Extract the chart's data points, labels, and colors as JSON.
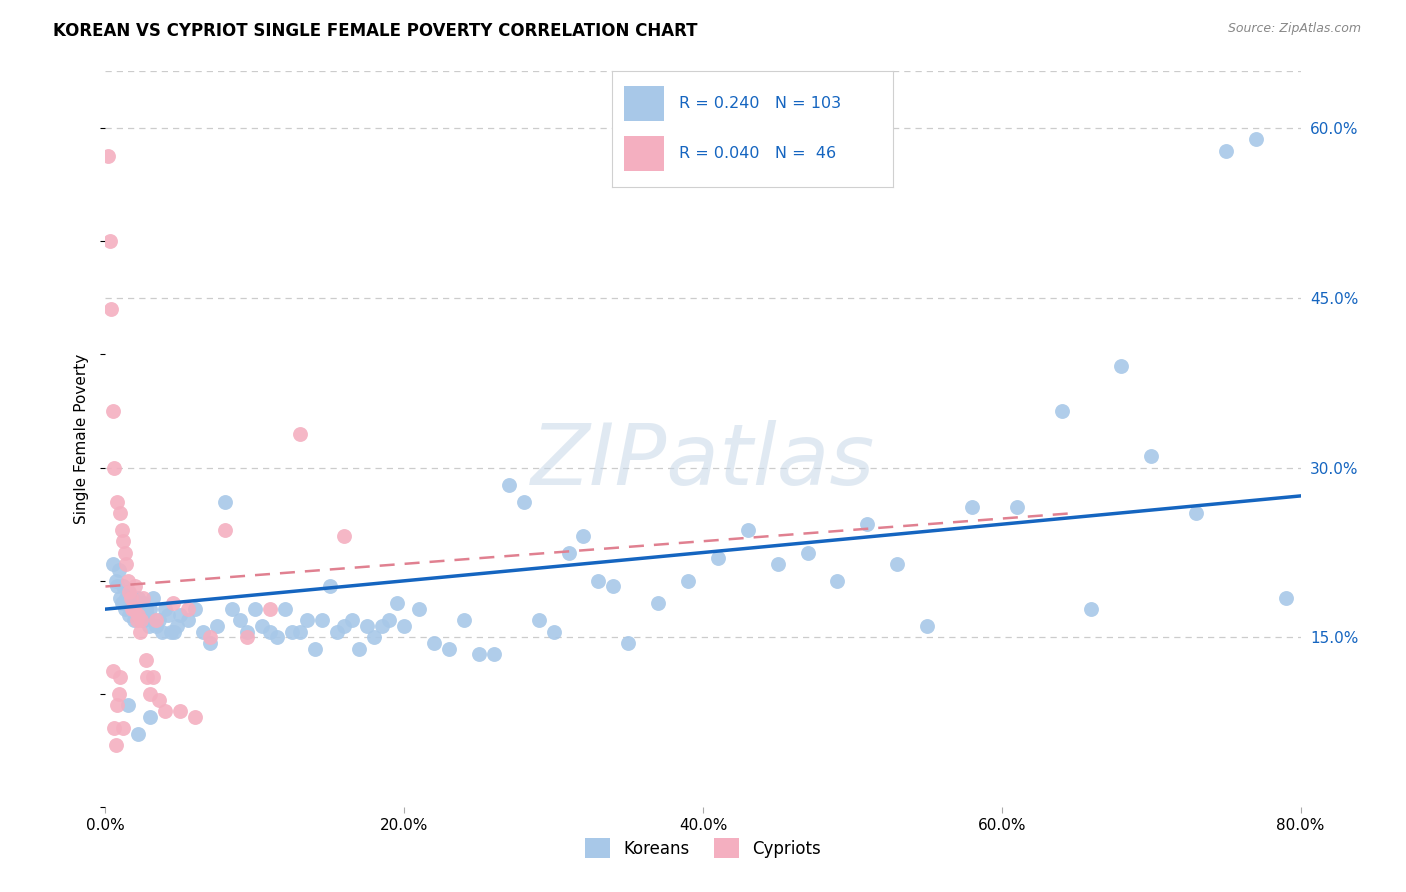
{
  "title": "KOREAN VS CYPRIOT SINGLE FEMALE POVERTY CORRELATION CHART",
  "source": "Source: ZipAtlas.com",
  "ylabel": "Single Female Poverty",
  "watermark": "ZIPatlas",
  "xlim": [
    0.0,
    0.8
  ],
  "ylim": [
    0.0,
    0.65
  ],
  "xticks": [
    0.0,
    0.2,
    0.4,
    0.6,
    0.8
  ],
  "yticks": [
    0.15,
    0.3,
    0.45,
    0.6
  ],
  "ytick_labels": [
    "15.0%",
    "30.0%",
    "45.0%",
    "60.0%"
  ],
  "xtick_labels": [
    "0.0%",
    "20.0%",
    "40.0%",
    "60.0%",
    "80.0%"
  ],
  "korean_color": "#a8c8e8",
  "cypriot_color": "#f4afc0",
  "trend_korean_color": "#1565c0",
  "trend_cypriot_color": "#e08090",
  "legend_text_color": "#1565c0",
  "legend_korean_R": "0.240",
  "legend_korean_N": "103",
  "legend_cypriot_R": "0.040",
  "legend_cypriot_N": " 46",
  "title_fontsize": 12,
  "source_fontsize": 9,
  "axis_label_fontsize": 11,
  "tick_fontsize": 11,
  "background_color": "#ffffff",
  "grid_color": "#cccccc",
  "korean_x": [
    0.005,
    0.007,
    0.008,
    0.009,
    0.01,
    0.011,
    0.012,
    0.013,
    0.014,
    0.015,
    0.016,
    0.017,
    0.018,
    0.019,
    0.02,
    0.021,
    0.022,
    0.023,
    0.024,
    0.025,
    0.026,
    0.027,
    0.028,
    0.029,
    0.03,
    0.032,
    0.034,
    0.036,
    0.038,
    0.04,
    0.042,
    0.044,
    0.046,
    0.048,
    0.05,
    0.055,
    0.06,
    0.065,
    0.07,
    0.075,
    0.08,
    0.085,
    0.09,
    0.095,
    0.1,
    0.105,
    0.11,
    0.115,
    0.12,
    0.125,
    0.13,
    0.135,
    0.14,
    0.145,
    0.15,
    0.155,
    0.16,
    0.165,
    0.17,
    0.175,
    0.18,
    0.185,
    0.19,
    0.195,
    0.2,
    0.21,
    0.22,
    0.23,
    0.24,
    0.25,
    0.26,
    0.27,
    0.28,
    0.29,
    0.3,
    0.31,
    0.32,
    0.33,
    0.34,
    0.35,
    0.37,
    0.39,
    0.41,
    0.43,
    0.45,
    0.47,
    0.49,
    0.51,
    0.53,
    0.55,
    0.58,
    0.61,
    0.64,
    0.66,
    0.68,
    0.7,
    0.73,
    0.75,
    0.77,
    0.79,
    0.015,
    0.022,
    0.03
  ],
  "korean_y": [
    0.215,
    0.2,
    0.195,
    0.21,
    0.185,
    0.18,
    0.195,
    0.175,
    0.185,
    0.19,
    0.17,
    0.175,
    0.185,
    0.165,
    0.18,
    0.175,
    0.185,
    0.17,
    0.175,
    0.18,
    0.165,
    0.175,
    0.17,
    0.16,
    0.175,
    0.185,
    0.16,
    0.165,
    0.155,
    0.175,
    0.17,
    0.155,
    0.155,
    0.16,
    0.17,
    0.165,
    0.175,
    0.155,
    0.145,
    0.16,
    0.27,
    0.175,
    0.165,
    0.155,
    0.175,
    0.16,
    0.155,
    0.15,
    0.175,
    0.155,
    0.155,
    0.165,
    0.14,
    0.165,
    0.195,
    0.155,
    0.16,
    0.165,
    0.14,
    0.16,
    0.15,
    0.16,
    0.165,
    0.18,
    0.16,
    0.175,
    0.145,
    0.14,
    0.165,
    0.135,
    0.135,
    0.285,
    0.27,
    0.165,
    0.155,
    0.225,
    0.24,
    0.2,
    0.195,
    0.145,
    0.18,
    0.2,
    0.22,
    0.245,
    0.215,
    0.225,
    0.2,
    0.25,
    0.215,
    0.16,
    0.265,
    0.265,
    0.35,
    0.175,
    0.39,
    0.31,
    0.26,
    0.58,
    0.59,
    0.185,
    0.09,
    0.065,
    0.08
  ],
  "cypriot_x": [
    0.002,
    0.003,
    0.004,
    0.005,
    0.005,
    0.006,
    0.006,
    0.007,
    0.008,
    0.008,
    0.009,
    0.01,
    0.01,
    0.011,
    0.012,
    0.012,
    0.013,
    0.014,
    0.015,
    0.016,
    0.017,
    0.018,
    0.019,
    0.02,
    0.021,
    0.022,
    0.023,
    0.024,
    0.025,
    0.027,
    0.028,
    0.03,
    0.032,
    0.034,
    0.036,
    0.04,
    0.045,
    0.05,
    0.055,
    0.06,
    0.07,
    0.08,
    0.095,
    0.11,
    0.13,
    0.16
  ],
  "cypriot_y": [
    0.575,
    0.5,
    0.44,
    0.12,
    0.35,
    0.07,
    0.3,
    0.055,
    0.27,
    0.09,
    0.1,
    0.26,
    0.115,
    0.245,
    0.07,
    0.235,
    0.225,
    0.215,
    0.2,
    0.19,
    0.185,
    0.175,
    0.175,
    0.195,
    0.165,
    0.17,
    0.155,
    0.165,
    0.185,
    0.13,
    0.115,
    0.1,
    0.115,
    0.165,
    0.095,
    0.085,
    0.18,
    0.085,
    0.175,
    0.08,
    0.15,
    0.245,
    0.15,
    0.175,
    0.33,
    0.24
  ],
  "trend_korean_x0": 0.0,
  "trend_korean_y0": 0.175,
  "trend_korean_x1": 0.8,
  "trend_korean_y1": 0.275,
  "trend_cypriot_x0": 0.0,
  "trend_cypriot_y0": 0.195,
  "trend_cypriot_x1": 0.65,
  "trend_cypriot_y1": 0.26
}
